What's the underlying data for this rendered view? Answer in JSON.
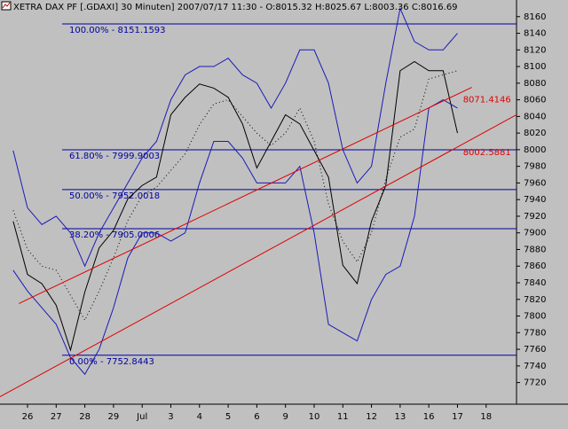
{
  "chart_data": {
    "type": "stock",
    "title": "XETRA DAX PF [.GDAXI]  30 Minuten] 2007/07/17 11:30 - O:8015.32 H:8025.67 L:8003.36 C:8016.69",
    "x": [
      -0.5,
      0,
      0.5,
      1,
      1.5,
      2,
      2.5,
      3,
      3.5,
      4,
      4.5,
      5,
      5.5,
      6,
      6.5,
      7,
      7.5,
      8,
      8.5,
      9,
      9.5,
      10,
      10.5,
      11,
      11.5,
      12,
      12.5,
      13,
      13.5,
      14,
      14.5,
      15
    ],
    "series": [
      {
        "color": "#000000",
        "style": "solid",
        "values": [
          7914,
          7850,
          7839,
          7813,
          7759,
          7829,
          7882,
          7903,
          7941,
          7957,
          7967,
          8042,
          8063,
          8079,
          8074,
          8063,
          8031,
          7978,
          8010,
          8042,
          8031,
          7999,
          7967,
          7861,
          7839,
          7914,
          7957,
          8095,
          8106,
          8095,
          8095,
          8020
        ]
      },
      {
        "color": "#1a1ab8",
        "style": "solid",
        "values": [
          7999,
          7930,
          7910,
          7920,
          7900,
          7860,
          7900,
          7930,
          7960,
          7990,
          8010,
          8060,
          8090,
          8100,
          8100,
          8110,
          8090,
          8080,
          8050,
          8080,
          8120,
          8120,
          8080,
          8000,
          7960,
          7980,
          8080,
          8170,
          8130,
          8120,
          8120,
          8140
        ]
      },
      {
        "color": "#1a1ab8",
        "style": "solid",
        "values": [
          7855,
          7830,
          7810,
          7790,
          7750,
          7730,
          7760,
          7810,
          7870,
          7900,
          7900,
          7890,
          7900,
          7960,
          8010,
          8010,
          7990,
          7960,
          7960,
          7960,
          7980,
          7900,
          7790,
          7780,
          7770,
          7820,
          7850,
          7860,
          7920,
          8050,
          8060,
          8050
        ]
      },
      {
        "color": "#000000",
        "style": "dotted",
        "values": [
          7927,
          7880,
          7860,
          7855,
          7825,
          7795,
          7830,
          7870,
          7915,
          7945,
          7955,
          7975,
          7995,
          8030,
          8055,
          8060,
          8040,
          8020,
          8005,
          8020,
          8050,
          8010,
          7935,
          7890,
          7865,
          7900,
          7965,
          8015,
          8025,
          8085,
          8090,
          8095
        ]
      }
    ],
    "fib_levels": [
      {
        "value": 8151.1593,
        "label": "100.00% - 8151.1593"
      },
      {
        "value": 7999.9003,
        "label": "61.80% - 7999.9003"
      },
      {
        "value": 7952.0018,
        "label": "50.00% - 7952.0018"
      },
      {
        "value": 7905.0006,
        "label": "38.20% - 7905.0006"
      },
      {
        "value": 7752.8443,
        "label": "0.00% - 7752.8443"
      }
    ],
    "fib_color": "#0000a0",
    "trendlines": [
      {
        "x": [
          -0.3,
          15.5
        ],
        "values": [
          7815,
          8075
        ],
        "label": "8071.4146",
        "color": "#e00000"
      },
      {
        "x": [
          -0.96,
          17.06
        ],
        "values": [
          7703,
          8042
        ],
        "label": "8002.5881",
        "color": "#e00000"
      }
    ],
    "xlim": [
      -0.96,
      17.06
    ],
    "xticks": [
      {
        "value": 0,
        "label": "26"
      },
      {
        "value": 1,
        "label": "27"
      },
      {
        "value": 2,
        "label": "28"
      },
      {
        "value": 3,
        "label": "29"
      },
      {
        "value": 4,
        "label": "Jul"
      },
      {
        "value": 5,
        "label": "3"
      },
      {
        "value": 6,
        "label": "4"
      },
      {
        "value": 7,
        "label": "5"
      },
      {
        "value": 8,
        "label": "6"
      },
      {
        "value": 9,
        "label": "9"
      },
      {
        "value": 10,
        "label": "10"
      },
      {
        "value": 11,
        "label": "11"
      },
      {
        "value": 12,
        "label": "12"
      },
      {
        "value": 13,
        "label": "13"
      },
      {
        "value": 14,
        "label": "16"
      },
      {
        "value": 15,
        "label": "17"
      },
      {
        "value": 16,
        "label": "18"
      }
    ],
    "ylim": [
      7694,
      8180
    ],
    "yticks": [
      7720,
      7740,
      7760,
      7780,
      7800,
      7820,
      7840,
      7860,
      7880,
      7900,
      7920,
      7940,
      7960,
      7980,
      8000,
      8020,
      8040,
      8060,
      8080,
      8100,
      8120,
      8140,
      8160
    ]
  }
}
